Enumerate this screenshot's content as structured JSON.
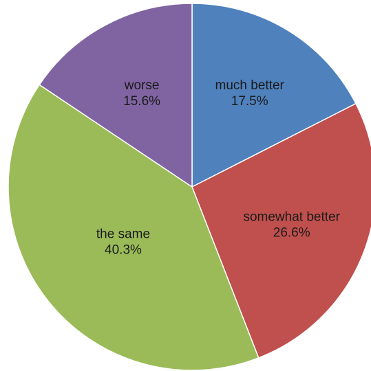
{
  "chart_data": {
    "type": "pie",
    "start_angle_deg": 0,
    "direction": "clockwise",
    "slices": [
      {
        "label": "much better",
        "value": 17.5,
        "value_label": "17.5%",
        "color": "#4F81BD"
      },
      {
        "label": "somewhat better",
        "value": 26.6,
        "value_label": "26.6%",
        "color": "#C0504D"
      },
      {
        "label": "the same",
        "value": 40.3,
        "value_label": "40.3%",
        "color": "#9BBB59"
      },
      {
        "label": "worse",
        "value": 15.6,
        "value_label": "15.6%",
        "color": "#8064A2"
      }
    ]
  }
}
